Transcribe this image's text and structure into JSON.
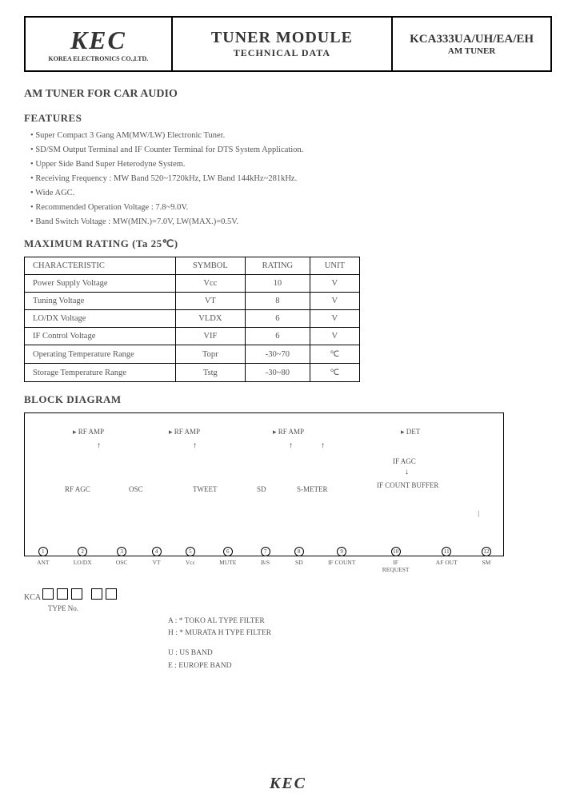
{
  "header": {
    "logo": "KEC",
    "logo_sub": "KOREA ELECTRONICS CO.,LTD.",
    "title": "TUNER MODULE",
    "title_sub": "TECHNICAL DATA",
    "part": "KCA333UA/UH/EA/EH",
    "part_sub": "AM TUNER"
  },
  "subtitle": "AM TUNER FOR CAR AUDIO",
  "features": {
    "heading": "FEATURES",
    "items": [
      "Super Compact 3 Gang AM(MW/LW) Electronic Tuner.",
      "SD/SM Output Terminal and IF Counter Terminal for DTS System Application.",
      "Upper Side Band Super Heterodyne System.",
      "Receiving Frequency : MW Band 520~1720kHz, LW Band 144kHz~281kHz.",
      "Wide AGC.",
      "Recommended Operation Voltage : 7.8~9.0V.",
      "Band Switch Voltage : MW(MIN.)=7.0V, LW(MAX.)=0.5V."
    ]
  },
  "rating": {
    "heading": "MAXIMUM RATING (Ta 25℃)",
    "columns": [
      "CHARACTERISTIC",
      "SYMBOL",
      "RATING",
      "UNIT"
    ],
    "rows": [
      [
        "Power Supply Voltage",
        "Vcc",
        "10",
        "V"
      ],
      [
        "Tuning Voltage",
        "VT",
        "8",
        "V"
      ],
      [
        "LO/DX Voltage",
        "VLDX",
        "6",
        "V"
      ],
      [
        "IF Control Voltage",
        "VIF",
        "6",
        "V"
      ],
      [
        "Operating Temperature Range",
        "Topr",
        "-30~70",
        "℃"
      ],
      [
        "Storage Temperature Range",
        "Tstg",
        "-30~80",
        "℃"
      ]
    ]
  },
  "block": {
    "heading": "BLOCK DIAGRAM",
    "top_labels": [
      "RF AMP",
      "RF AMP",
      "RF AMP",
      "DET"
    ],
    "mid_labels": [
      "RF AGC",
      "OSC",
      "TWEET",
      "SD",
      "S-METER",
      "IF AGC",
      "IF COUNT BUFFER"
    ],
    "pins": [
      {
        "n": "1",
        "label": "ANT"
      },
      {
        "n": "2",
        "label": "LO/DX"
      },
      {
        "n": "3",
        "label": "OSC"
      },
      {
        "n": "4",
        "label": "VT"
      },
      {
        "n": "5",
        "label": "Vcc"
      },
      {
        "n": "6",
        "label": "MUTE"
      },
      {
        "n": "7",
        "label": "B/S"
      },
      {
        "n": "8",
        "label": "SD"
      },
      {
        "n": "9",
        "label": "IF COUNT"
      },
      {
        "n": "10",
        "label": "IF REQUEST"
      },
      {
        "n": "11",
        "label": "AF OUT"
      },
      {
        "n": "12",
        "label": "SM"
      }
    ]
  },
  "type": {
    "prefix": "KCA",
    "type_no_label": "TYPE No.",
    "filter_a": "A : * TOKO AL TYPE FILTER",
    "filter_h": "H : * MURATA H TYPE FILTER",
    "band_u": "U : US BAND",
    "band_e": "E : EUROPE BAND"
  },
  "footer_logo": "KEC"
}
